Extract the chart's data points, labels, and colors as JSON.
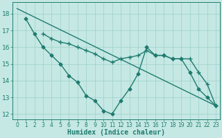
{
  "line1": {
    "x": [
      0,
      23
    ],
    "y": [
      18.3,
      12.5
    ],
    "color": "#1e7b6e",
    "marker": null,
    "linewidth": 1.0
  },
  "line2": {
    "x": [
      1,
      2,
      3,
      4,
      5,
      6,
      7,
      8,
      9,
      10,
      11,
      12,
      13,
      14,
      15,
      16,
      17,
      18,
      19,
      20,
      21,
      22,
      23
    ],
    "y": [
      17.7,
      16.8,
      16.0,
      15.5,
      15.0,
      14.3,
      13.9,
      13.1,
      12.8,
      12.2,
      12.0,
      12.8,
      13.5,
      14.4,
      16.0,
      15.5,
      15.5,
      15.3,
      15.3,
      14.5,
      13.5,
      13.0,
      12.5
    ],
    "color": "#1e7b6e",
    "marker": "D",
    "markersize": 2.5,
    "linewidth": 1.0
  },
  "line3": {
    "x": [
      3,
      4,
      5,
      6,
      7,
      8,
      9,
      10,
      11,
      12,
      13,
      14,
      15,
      16,
      17,
      18,
      19,
      20,
      21,
      22,
      23
    ],
    "y": [
      16.8,
      16.5,
      16.3,
      16.2,
      16.0,
      15.8,
      15.6,
      15.3,
      15.1,
      15.3,
      15.4,
      15.5,
      15.8,
      15.5,
      15.5,
      15.3,
      15.3,
      15.3,
      14.5,
      13.8,
      12.5
    ],
    "color": "#1e7b6e",
    "marker": "+",
    "markersize": 4,
    "linewidth": 1.0
  },
  "xlim": [
    -0.5,
    23.5
  ],
  "ylim": [
    11.7,
    18.7
  ],
  "yticks": [
    12,
    13,
    14,
    15,
    16,
    17,
    18
  ],
  "xticks": [
    0,
    1,
    2,
    3,
    4,
    5,
    6,
    7,
    8,
    9,
    10,
    11,
    12,
    13,
    14,
    15,
    16,
    17,
    18,
    19,
    20,
    21,
    22,
    23
  ],
  "xlabel": "Humidex (Indice chaleur)",
  "background_color": "#c5e8e4",
  "grid_color": "#9ecfca",
  "line_color": "#1e7b6e",
  "tick_color": "#1e7b6e",
  "label_color": "#1e7b6e",
  "tick_fontsize": 5.5,
  "xlabel_fontsize": 7
}
